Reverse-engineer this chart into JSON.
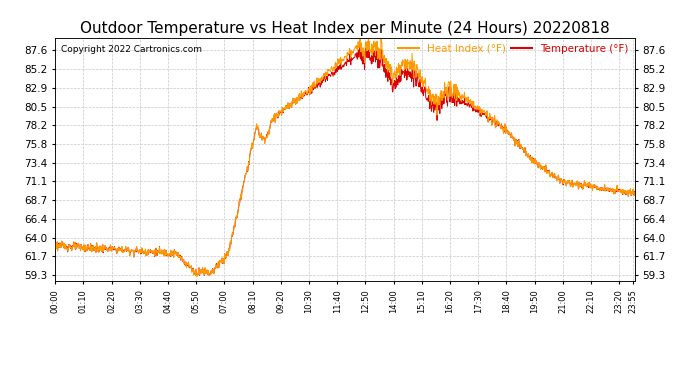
{
  "title": "Outdoor Temperature vs Heat Index per Minute (24 Hours) 20220818",
  "copyright": "Copyright 2022 Cartronics.com",
  "legend_heat": "Heat Index (°F)",
  "legend_temp": "Temperature (°F)",
  "ylim_min": 58.5,
  "ylim_max": 89.2,
  "yticks": [
    59.3,
    61.7,
    64.0,
    66.4,
    68.7,
    71.1,
    73.4,
    75.8,
    78.2,
    80.5,
    82.9,
    85.2,
    87.6
  ],
  "bg_color": "#ffffff",
  "plot_bg_color": "#ffffff",
  "grid_color": "#c8c8c8",
  "temp_color": "#dd0000",
  "heat_color": "#ff9900",
  "title_fontsize": 11,
  "x_labels": [
    "00:00",
    "01:10",
    "02:20",
    "03:30",
    "04:40",
    "05:50",
    "07:00",
    "08:10",
    "09:20",
    "10:30",
    "11:40",
    "12:50",
    "14:00",
    "15:10",
    "16:20",
    "17:30",
    "18:40",
    "19:50",
    "21:00",
    "22:10",
    "23:20",
    "23:55"
  ],
  "x_positions": [
    0,
    70,
    140,
    210,
    280,
    350,
    420,
    490,
    560,
    630,
    700,
    770,
    840,
    910,
    980,
    1050,
    1120,
    1190,
    1260,
    1330,
    1400,
    1435
  ],
  "num_minutes": 1440
}
